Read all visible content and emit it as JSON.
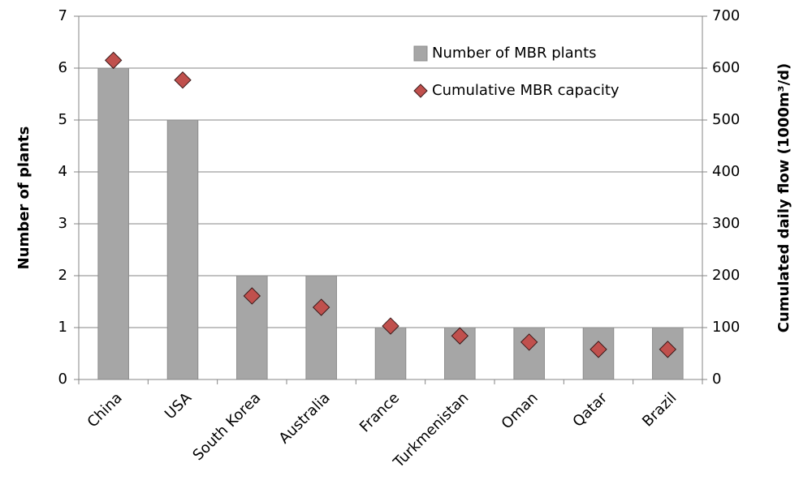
{
  "chart_data": {
    "type": "bar",
    "y_label": "Number of plants",
    "y2_label": "Cumulated daily flow (1000m³/d)",
    "categories": [
      "China",
      "USA",
      "South Korea",
      "Australia",
      "France",
      "Turkmenistan",
      "Oman",
      "Qatar",
      "Brazil"
    ],
    "series": [
      {
        "name": "Number of MBR plants",
        "type": "bar",
        "color": "#a6a6a6",
        "values": [
          6,
          5,
          2,
          2,
          1,
          1,
          1,
          1,
          1
        ]
      },
      {
        "name": "Cumulative MBR capacity",
        "type": "scatter",
        "axis": "y2",
        "color": "#c0504d",
        "values": [
          615,
          577,
          161,
          139,
          103,
          84,
          72,
          58,
          58
        ]
      }
    ],
    "ylim": [
      0,
      7
    ],
    "yticks": [
      0,
      1,
      2,
      3,
      4,
      5,
      6,
      7
    ],
    "y2lim": [
      0,
      700
    ],
    "y2ticks": [
      0,
      100,
      200,
      300,
      400,
      500,
      600,
      700
    ],
    "grid": true,
    "legend": "upper-right"
  }
}
